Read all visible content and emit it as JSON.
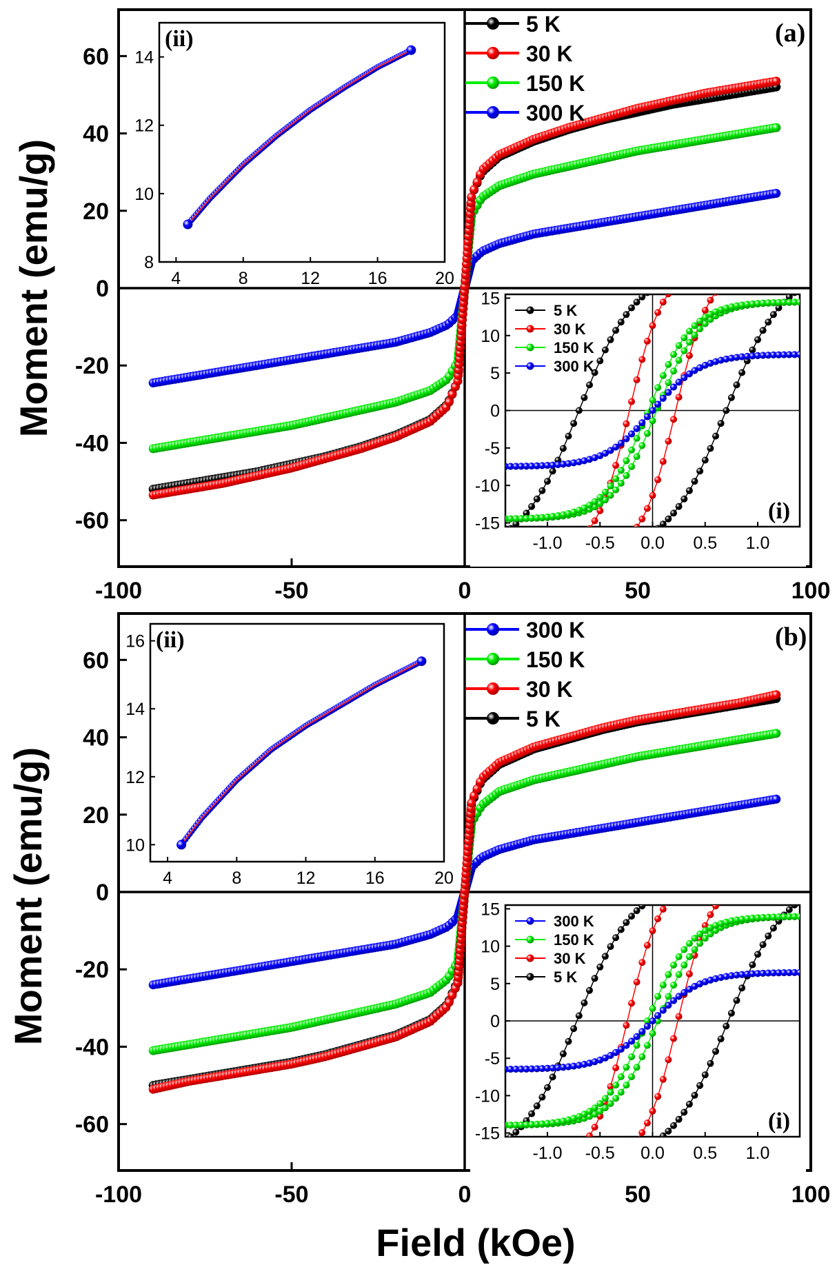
{
  "labels": {
    "xlabel": "Field (kOe)",
    "ylabel_a": "Moment (emu/g)",
    "ylabel_b": "Moment (emu/g)"
  },
  "chart_data": [
    {
      "panel": "a",
      "type": "line",
      "title": "(a)",
      "xlabel": "Field (kOe)",
      "ylabel": "Moment (emu/g)",
      "xlim": [
        -100,
        100
      ],
      "ylim": [
        -72,
        72
      ],
      "xticks": [
        -100,
        -50,
        0,
        50,
        100
      ],
      "yticks": [
        -60,
        -40,
        -20,
        0,
        20,
        40,
        60
      ],
      "legend": [
        {
          "label": "5 K",
          "color": "#000000"
        },
        {
          "label": "30 K",
          "color": "#ff0000"
        },
        {
          "label": "150 K",
          "color": "#00ee00"
        },
        {
          "label": "300 K",
          "color": "#0000ff"
        }
      ],
      "series": [
        {
          "name": "5 K",
          "color": "#000000",
          "x": [
            0,
            2,
            5,
            10,
            20,
            30,
            40,
            50,
            60,
            70,
            80,
            90
          ],
          "y": [
            0,
            24,
            30,
            34,
            38,
            41,
            43.5,
            45.5,
            47.5,
            49,
            50.5,
            52
          ]
        },
        {
          "name": "30 K",
          "color": "#ff0000",
          "x": [
            0,
            2,
            5,
            10,
            20,
            30,
            40,
            50,
            60,
            70,
            80,
            90
          ],
          "y": [
            0,
            24,
            30.5,
            34.5,
            38.5,
            41.5,
            44,
            46.5,
            48.5,
            50.5,
            52,
            53.5
          ]
        },
        {
          "name": "150 K",
          "color": "#00ee00",
          "x": [
            0,
            2,
            5,
            10,
            20,
            30,
            40,
            50,
            60,
            70,
            80,
            90
          ],
          "y": [
            0,
            19,
            23.5,
            26.5,
            29.5,
            31.5,
            33.5,
            35.5,
            37,
            38.5,
            40,
            41.5
          ]
        },
        {
          "name": "300 K",
          "color": "#0000ff",
          "x": [
            0,
            2,
            5,
            10,
            20,
            30,
            40,
            50,
            60,
            70,
            80,
            90
          ],
          "y": [
            0,
            7,
            9.5,
            11.5,
            14,
            15.5,
            17,
            18.5,
            20,
            21.5,
            23,
            24.5
          ]
        }
      ],
      "inset_i": {
        "label": "(i)",
        "xlim": [
          -1.4,
          1.4
        ],
        "ylim": [
          -15.5,
          15.5
        ],
        "xticks": [
          -1.0,
          -0.5,
          0.0,
          0.5,
          1.0
        ],
        "xtick_labels": [
          "-1.0",
          "-0.5",
          "0.0",
          "0.5",
          "1.0"
        ],
        "yticks": [
          -15,
          -10,
          -5,
          0,
          5,
          10,
          15
        ],
        "legend": [
          "5 K",
          "30 K",
          "150 K",
          "300 K"
        ],
        "loops": [
          {
            "name": "5 K",
            "color": "#000000",
            "hc": 0.7,
            "ms": 19,
            "h0": 0.55
          },
          {
            "name": "30 K",
            "color": "#ff0000",
            "hc": 0.22,
            "ms": 19,
            "h0": 0.32
          },
          {
            "name": "150 K",
            "color": "#00ee00",
            "hc": 0.04,
            "ms": 14.5,
            "h0": 0.42
          },
          {
            "name": "300 K",
            "color": "#0000ff",
            "hc": 0.0,
            "ms": 7.5,
            "h0": 0.45
          }
        ]
      },
      "inset_ii": {
        "label": "(ii)",
        "xlim": [
          3,
          20
        ],
        "ylim": [
          8,
          15
        ],
        "xticks": [
          4,
          8,
          12,
          16,
          20
        ],
        "yticks": [
          8,
          10,
          12,
          14
        ],
        "x": [
          4.7,
          6,
          8,
          10,
          12,
          14,
          16,
          18
        ],
        "y": [
          9.1,
          9.85,
          10.85,
          11.7,
          12.45,
          13.1,
          13.7,
          14.2
        ]
      }
    },
    {
      "panel": "b",
      "type": "line",
      "title": "(b)",
      "xlabel": "Field (kOe)",
      "ylabel": "Moment (emu/g)",
      "xlim": [
        -100,
        100
      ],
      "ylim": [
        -72,
        72
      ],
      "xticks": [
        -100,
        -50,
        0,
        50,
        100
      ],
      "yticks": [
        -60,
        -40,
        -20,
        0,
        20,
        40,
        60
      ],
      "legend": [
        {
          "label": "300 K",
          "color": "#0000ff"
        },
        {
          "label": "150 K",
          "color": "#00ee00"
        },
        {
          "label": "30 K",
          "color": "#ff0000"
        },
        {
          "label": "5 K",
          "color": "#000000"
        }
      ],
      "series": [
        {
          "name": "5 K",
          "color": "#000000",
          "x": [
            0,
            2,
            5,
            10,
            20,
            30,
            40,
            50,
            60,
            70,
            80,
            90
          ],
          "y": [
            0,
            23,
            29,
            33,
            37,
            39.5,
            42,
            44,
            45.5,
            47,
            48.5,
            50
          ]
        },
        {
          "name": "30 K",
          "color": "#ff0000",
          "x": [
            0,
            2,
            5,
            10,
            20,
            30,
            40,
            50,
            60,
            70,
            80,
            90
          ],
          "y": [
            0,
            23.5,
            29.5,
            33.5,
            37.5,
            40,
            42.5,
            44.5,
            46,
            47.5,
            49,
            51
          ]
        },
        {
          "name": "150 K",
          "color": "#00ee00",
          "x": [
            0,
            2,
            5,
            10,
            20,
            30,
            40,
            50,
            60,
            70,
            80,
            90
          ],
          "y": [
            0,
            18,
            22.5,
            26,
            29,
            31,
            33,
            35,
            36.5,
            38,
            39.5,
            41
          ]
        },
        {
          "name": "300 K",
          "color": "#0000ff",
          "x": [
            0,
            2,
            5,
            10,
            20,
            30,
            40,
            50,
            60,
            70,
            80,
            90
          ],
          "y": [
            0,
            6.5,
            9,
            11,
            13.5,
            15,
            16.5,
            18,
            19.5,
            21,
            22.5,
            24
          ]
        }
      ],
      "inset_i": {
        "label": "(i)",
        "xlim": [
          -1.4,
          1.4
        ],
        "ylim": [
          -15.5,
          15.5
        ],
        "xticks": [
          -1.0,
          -0.5,
          0.0,
          0.5,
          1.0
        ],
        "xtick_labels": [
          "-1.0",
          "-0.5",
          "0.0",
          "0.5",
          "1.0"
        ],
        "yticks": [
          -15,
          -10,
          -5,
          0,
          5,
          10,
          15
        ],
        "legend": [
          "300 K",
          "150 K",
          "30 K",
          "5 K"
        ],
        "loops": [
          {
            "name": "5 K",
            "color": "#000000",
            "hc": 0.72,
            "ms": 19,
            "h0": 0.55
          },
          {
            "name": "30 K",
            "color": "#ff0000",
            "hc": 0.24,
            "ms": 19,
            "h0": 0.32
          },
          {
            "name": "150 K",
            "color": "#00ee00",
            "hc": 0.05,
            "ms": 14,
            "h0": 0.42
          },
          {
            "name": "300 K",
            "color": "#0000ff",
            "hc": 0.0,
            "ms": 6.5,
            "h0": 0.45
          }
        ]
      },
      "inset_ii": {
        "label": "(ii)",
        "xlim": [
          3,
          20
        ],
        "ylim": [
          9.5,
          16.5
        ],
        "xticks": [
          4,
          8,
          12,
          16,
          20
        ],
        "yticks": [
          10,
          12,
          14,
          16
        ],
        "x": [
          4.8,
          6,
          8,
          10,
          12,
          14,
          16,
          18.7
        ],
        "y": [
          10.0,
          10.8,
          11.9,
          12.8,
          13.5,
          14.1,
          14.7,
          15.4
        ]
      }
    }
  ]
}
